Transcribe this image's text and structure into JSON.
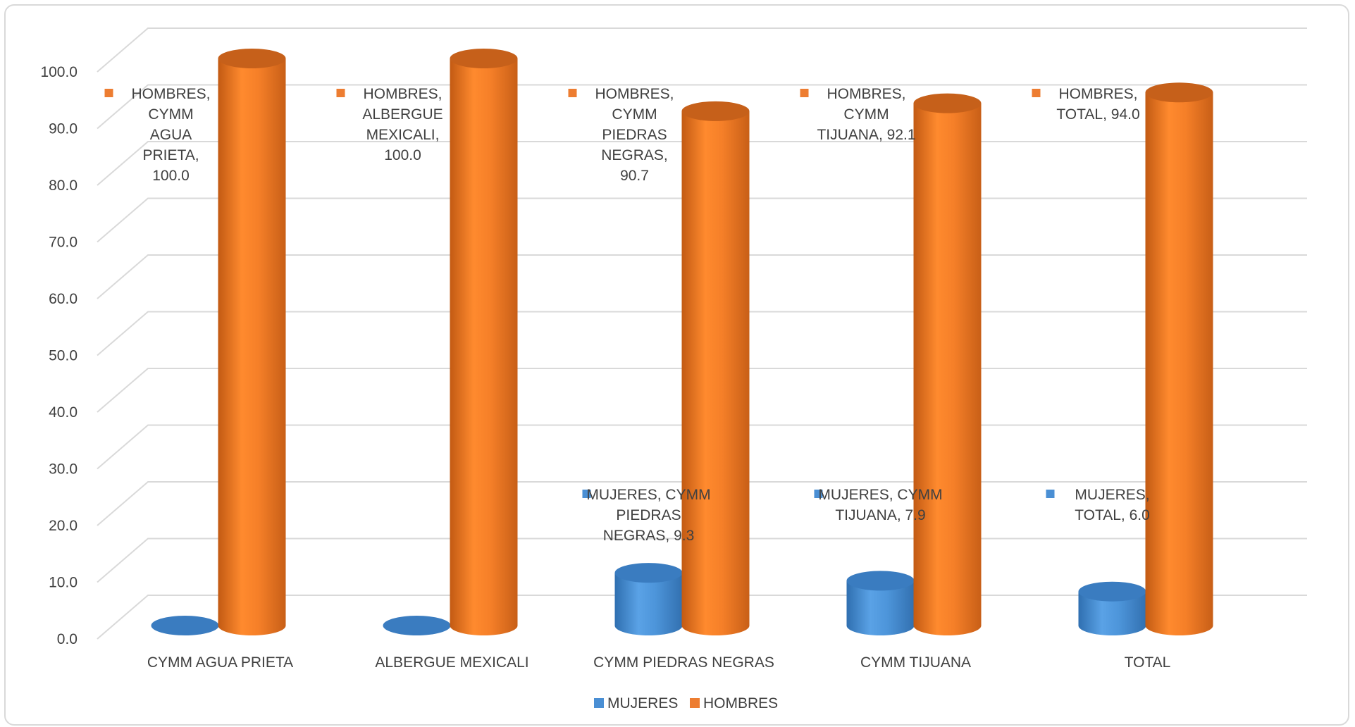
{
  "chart_data": {
    "type": "bar",
    "categories": [
      "CYMM AGUA PRIETA",
      "ALBERGUE MEXICALI",
      "CYMM PIEDRAS NEGRAS",
      "CYMM TIJUANA",
      "TOTAL"
    ],
    "series": [
      {
        "name": "MUJERES",
        "values": [
          0.0,
          0.0,
          9.3,
          7.9,
          6.0
        ],
        "color": "#4a8fd4"
      },
      {
        "name": "HOMBRES",
        "values": [
          100.0,
          100.0,
          90.7,
          92.1,
          94.0
        ],
        "color": "#ed7d31"
      }
    ],
    "ylim": [
      0,
      100
    ],
    "yticks": [
      "0.0",
      "10.0",
      "20.0",
      "30.0",
      "40.0",
      "50.0",
      "60.0",
      "70.0",
      "80.0",
      "90.0",
      "100.0"
    ],
    "grid": true,
    "legend_position": "bottom",
    "data_labels": [
      {
        "series": "HOMBRES",
        "category": "CYMM AGUA PRIETA",
        "lines": [
          "HOMBRES,",
          "CYMM",
          "AGUA",
          "PRIETA,",
          "100.0"
        ]
      },
      {
        "series": "HOMBRES",
        "category": "ALBERGUE MEXICALI",
        "lines": [
          "HOMBRES,",
          "ALBERGUE",
          "MEXICALI,",
          "100.0"
        ]
      },
      {
        "series": "HOMBRES",
        "category": "CYMM PIEDRAS NEGRAS",
        "lines": [
          "HOMBRES,",
          "CYMM",
          "PIEDRAS",
          "NEGRAS,",
          "90.7"
        ]
      },
      {
        "series": "HOMBRES",
        "category": "CYMM TIJUANA",
        "lines": [
          "HOMBRES,",
          "CYMM",
          "TIJUANA, 92.1"
        ]
      },
      {
        "series": "HOMBRES",
        "category": "TOTAL",
        "lines": [
          "HOMBRES,",
          "TOTAL, 94.0"
        ]
      },
      {
        "series": "MUJERES",
        "category": "CYMM PIEDRAS NEGRAS",
        "lines": [
          "MUJERES, CYMM",
          "PIEDRAS",
          "NEGRAS, 9.3"
        ]
      },
      {
        "series": "MUJERES",
        "category": "CYMM TIJUANA",
        "lines": [
          "MUJERES, CYMM",
          "TIJUANA, 7.9"
        ]
      },
      {
        "series": "MUJERES",
        "category": "TOTAL",
        "lines": [
          "MUJERES,",
          "TOTAL, 6.0"
        ]
      }
    ]
  }
}
